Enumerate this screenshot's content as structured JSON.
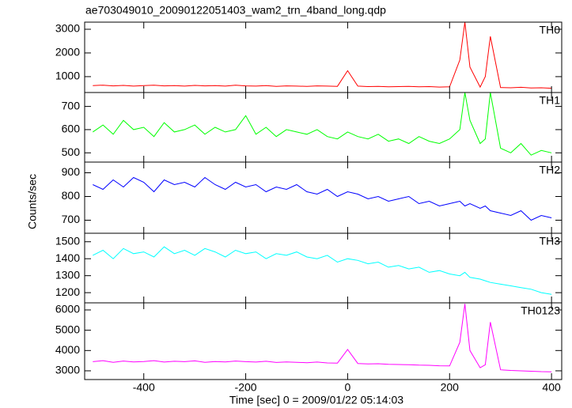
{
  "chart_data": [
    {
      "type": "line",
      "title": "ae703049010_20090122051403_wam2_trn_4band_long.qdp",
      "ylabel": "Counts/sec",
      "label": "TH0",
      "color": "#ff0000",
      "x": [
        -500,
        -480,
        -460,
        -440,
        -420,
        -400,
        -380,
        -360,
        -340,
        -320,
        -300,
        -280,
        -260,
        -240,
        -220,
        -200,
        -180,
        -160,
        -140,
        -120,
        -100,
        -80,
        -60,
        -40,
        -20,
        0,
        20,
        40,
        60,
        80,
        100,
        120,
        140,
        160,
        180,
        200,
        220,
        230,
        240,
        260,
        270,
        280,
        300,
        320,
        340,
        360,
        380,
        400
      ],
      "values": [
        620,
        640,
        610,
        630,
        600,
        620,
        640,
        610,
        620,
        600,
        630,
        610,
        620,
        600,
        640,
        610,
        600,
        620,
        590,
        610,
        600,
        590,
        610,
        600,
        590,
        1250,
        600,
        580,
        590,
        570,
        580,
        590,
        570,
        580,
        560,
        570,
        1700,
        3300,
        1400,
        560,
        1000,
        2700,
        540,
        530,
        550,
        520,
        530,
        510
      ],
      "xlim": [
        -516,
        420
      ],
      "ylim": [
        330,
        3300
      ],
      "yticks": [
        1000,
        2000,
        3000
      ]
    },
    {
      "type": "line",
      "label": "TH1",
      "color": "#00ff00",
      "x": [
        -500,
        -480,
        -460,
        -440,
        -420,
        -400,
        -380,
        -360,
        -340,
        -320,
        -300,
        -280,
        -260,
        -240,
        -220,
        -200,
        -180,
        -160,
        -140,
        -120,
        -100,
        -80,
        -60,
        -40,
        -20,
        0,
        20,
        40,
        60,
        80,
        100,
        120,
        140,
        160,
        180,
        200,
        220,
        230,
        240,
        260,
        270,
        280,
        300,
        320,
        340,
        360,
        380,
        400
      ],
      "values": [
        590,
        620,
        580,
        640,
        600,
        610,
        570,
        630,
        590,
        600,
        620,
        580,
        610,
        590,
        600,
        660,
        580,
        610,
        570,
        600,
        590,
        580,
        600,
        570,
        560,
        590,
        570,
        560,
        580,
        550,
        560,
        540,
        570,
        550,
        540,
        560,
        600,
        760,
        640,
        540,
        560,
        760,
        520,
        500,
        540,
        490,
        510,
        500
      ],
      "xlim": [
        -516,
        420
      ],
      "ylim": [
        460,
        760
      ],
      "yticks": [
        500,
        600,
        700
      ]
    },
    {
      "type": "line",
      "label": "TH2",
      "color": "#0000ff",
      "x": [
        -500,
        -480,
        -460,
        -440,
        -420,
        -400,
        -380,
        -360,
        -340,
        -320,
        -300,
        -280,
        -260,
        -240,
        -220,
        -200,
        -180,
        -160,
        -140,
        -120,
        -100,
        -80,
        -60,
        -40,
        -20,
        0,
        20,
        40,
        60,
        80,
        100,
        120,
        140,
        160,
        180,
        200,
        220,
        230,
        240,
        260,
        270,
        280,
        300,
        320,
        340,
        360,
        380,
        400
      ],
      "values": [
        850,
        830,
        870,
        840,
        880,
        860,
        820,
        870,
        850,
        860,
        840,
        880,
        850,
        830,
        860,
        840,
        850,
        820,
        840,
        830,
        850,
        820,
        810,
        830,
        800,
        820,
        810,
        790,
        800,
        780,
        790,
        800,
        770,
        780,
        760,
        770,
        780,
        760,
        770,
        750,
        760,
        740,
        730,
        720,
        740,
        700,
        720,
        710
      ],
      "xlim": [
        -516,
        420
      ],
      "ylim": [
        645,
        945
      ],
      "yticks": [
        700,
        800,
        900
      ]
    },
    {
      "type": "line",
      "label": "TH3",
      "color": "#00ffff",
      "x": [
        -500,
        -480,
        -460,
        -440,
        -420,
        -400,
        -380,
        -360,
        -340,
        -320,
        -300,
        -280,
        -260,
        -240,
        -220,
        -200,
        -180,
        -160,
        -140,
        -120,
        -100,
        -80,
        -60,
        -40,
        -20,
        0,
        20,
        40,
        60,
        80,
        100,
        120,
        140,
        160,
        180,
        200,
        220,
        230,
        240,
        260,
        270,
        280,
        300,
        320,
        340,
        360,
        380,
        400
      ],
      "values": [
        1420,
        1450,
        1400,
        1460,
        1430,
        1440,
        1410,
        1470,
        1430,
        1450,
        1420,
        1460,
        1440,
        1410,
        1450,
        1430,
        1440,
        1400,
        1430,
        1420,
        1440,
        1410,
        1400,
        1420,
        1380,
        1400,
        1390,
        1370,
        1380,
        1350,
        1360,
        1340,
        1350,
        1320,
        1330,
        1310,
        1300,
        1320,
        1290,
        1280,
        1270,
        1260,
        1250,
        1240,
        1230,
        1220,
        1200,
        1190
      ],
      "xlim": [
        -516,
        420
      ],
      "ylim": [
        1140,
        1550
      ],
      "yticks": [
        1200,
        1300,
        1400,
        1500
      ]
    },
    {
      "type": "line",
      "label": "TH0123",
      "color": "#ff00ff",
      "xlabel": "Time [sec] 0 = 2009/01/22 05:14:03",
      "x": [
        -500,
        -480,
        -460,
        -440,
        -420,
        -400,
        -380,
        -360,
        -340,
        -320,
        -300,
        -280,
        -260,
        -240,
        -220,
        -200,
        -180,
        -160,
        -140,
        -120,
        -100,
        -80,
        -60,
        -40,
        -20,
        0,
        20,
        40,
        60,
        80,
        100,
        120,
        140,
        160,
        180,
        200,
        220,
        230,
        240,
        260,
        270,
        280,
        300,
        320,
        340,
        360,
        380,
        400
      ],
      "values": [
        3450,
        3500,
        3420,
        3480,
        3440,
        3460,
        3500,
        3430,
        3470,
        3450,
        3490,
        3420,
        3460,
        3440,
        3480,
        3450,
        3430,
        3470,
        3410,
        3440,
        3420,
        3400,
        3430,
        3390,
        3380,
        4050,
        3360,
        3340,
        3350,
        3320,
        3310,
        3300,
        3280,
        3270,
        3250,
        3240,
        4400,
        6300,
        4000,
        3150,
        3300,
        5400,
        3050,
        3020,
        3000,
        2980,
        2960,
        2950
      ],
      "xlim": [
        -516,
        420
      ],
      "ylim": [
        2570,
        6350
      ],
      "yticks": [
        3000,
        4000,
        5000,
        6000
      ],
      "xticks": [
        -400,
        -200,
        0,
        200,
        400
      ]
    }
  ]
}
